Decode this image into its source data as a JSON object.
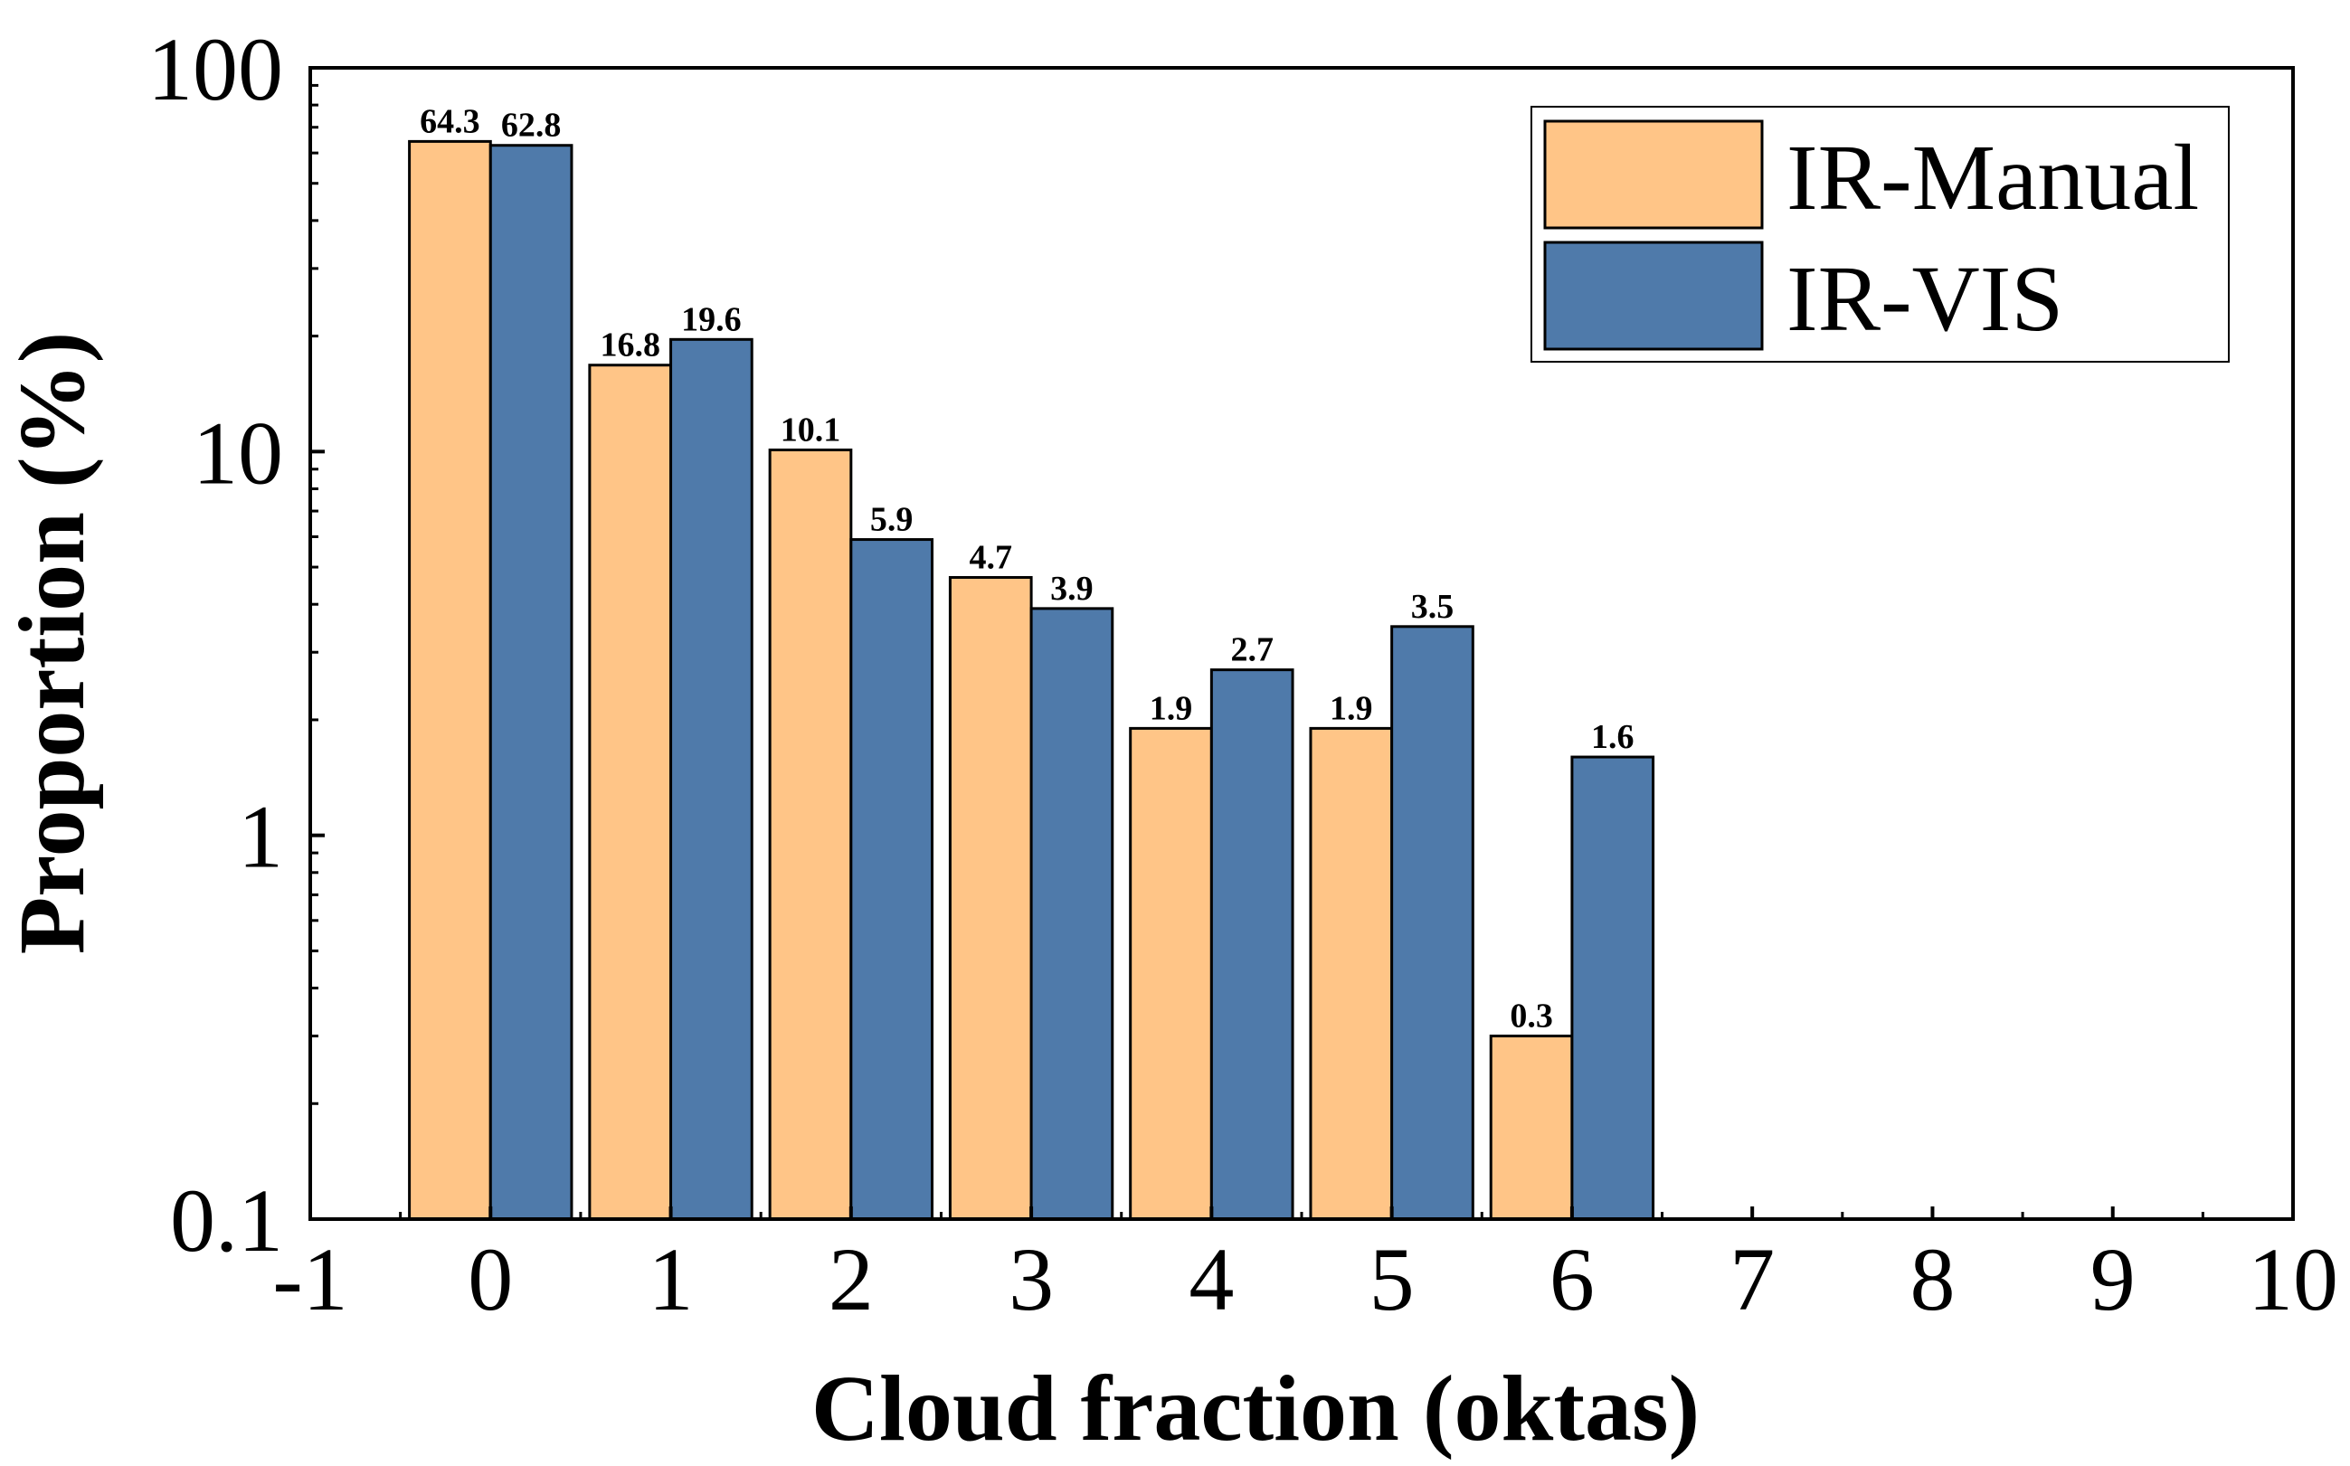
{
  "chart_data": {
    "type": "bar",
    "title": "",
    "xlabel": "Cloud fraction (oktas)",
    "ylabel": "Proportion (%)",
    "yscale": "log",
    "ylim": [
      0.1,
      100
    ],
    "xlim": [
      -1,
      10
    ],
    "x_ticks": [
      "-1",
      "0",
      "1",
      "2",
      "3",
      "4",
      "5",
      "6",
      "7",
      "8",
      "9",
      "10"
    ],
    "y_ticks": [
      "0.1",
      "1",
      "10",
      "100"
    ],
    "categories": [
      0,
      1,
      2,
      3,
      4,
      5,
      6
    ],
    "series": [
      {
        "name": "IR-Manual",
        "color": "#FFC587",
        "values": [
          64.3,
          16.8,
          10.1,
          4.7,
          1.9,
          1.9,
          0.3
        ],
        "labels": [
          "64.3",
          "16.8",
          "10.1",
          "4.7",
          "1.9",
          "1.9",
          "0.3"
        ]
      },
      {
        "name": "IR-VIS",
        "color": "#4F7AAA",
        "values": [
          62.8,
          19.6,
          5.9,
          3.9,
          2.7,
          3.5,
          1.6
        ],
        "labels": [
          "62.8",
          "19.6",
          "5.9",
          "3.9",
          "2.7",
          "3.5",
          "1.6"
        ]
      }
    ],
    "legend_position": "top-right",
    "grid": false
  }
}
